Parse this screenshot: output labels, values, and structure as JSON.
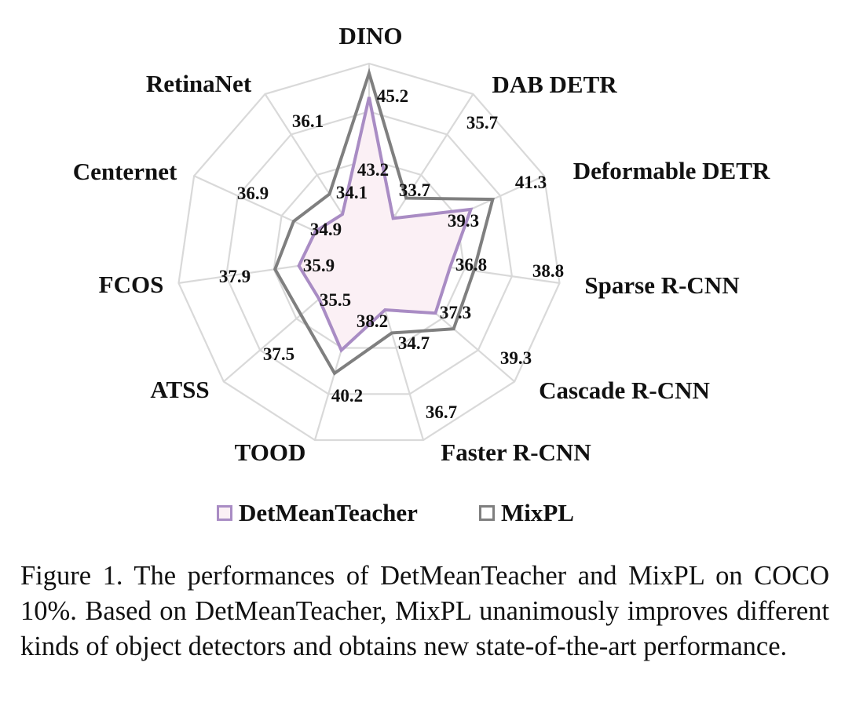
{
  "chart_data": {
    "type": "radar",
    "categories": [
      "DINO",
      "DAB DETR",
      "Deformable DETR",
      "Sparse R-CNN",
      "Cascade R-CNN",
      "Faster R-CNN",
      "TOOD",
      "ATSS",
      "FCOS",
      "Centernet",
      "RetinaNet"
    ],
    "series": [
      {
        "name": "DetMeanTeacher",
        "values": [
          43.2,
          33.7,
          39.3,
          36.8,
          37.3,
          34.7,
          38.2,
          35.5,
          35.9,
          34.9,
          34.1
        ],
        "color": "#a98cc4",
        "fill": "#fbf0f5"
      },
      {
        "name": "MixPL",
        "values": [
          45.2,
          35.7,
          41.3,
          38.8,
          39.3,
          36.7,
          40.2,
          37.5,
          37.9,
          36.9,
          36.1
        ],
        "color": "#7f7f7f"
      }
    ],
    "grid": true,
    "legend": "bottom"
  },
  "legend": {
    "items": [
      "DetMeanTeacher",
      "MixPL"
    ]
  },
  "caption": "Figure 1.  The performances of DetMeanTeacher and MixPL on COCO 10%. Based on DetMeanTeacher, MixPL unanimously improves different kinds of object detectors and obtains new state-of-the-art performance."
}
